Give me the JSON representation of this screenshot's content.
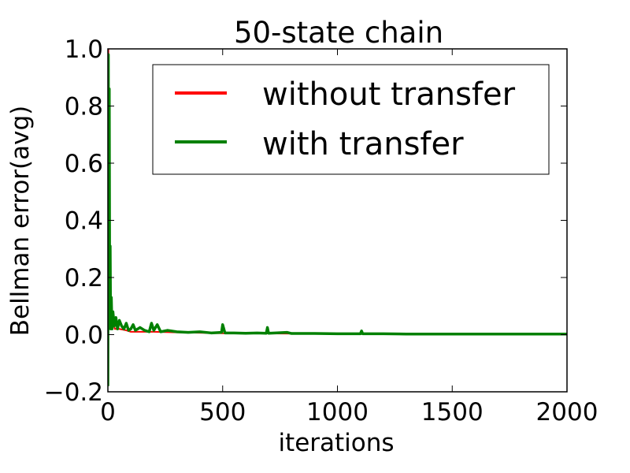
{
  "chart_data": {
    "type": "line",
    "title": "50-state chain",
    "xlabel": "iterations",
    "ylabel": "Bellman error(avg)",
    "xlim": [
      0,
      2000
    ],
    "ylim": [
      -0.2,
      1.0
    ],
    "xticks": [
      0,
      500,
      1000,
      1500,
      2000
    ],
    "xtick_labels": [
      "0",
      "500",
      "1000",
      "1500",
      "2000"
    ],
    "yticks": [
      -0.2,
      0.0,
      0.2,
      0.4,
      0.6,
      0.8,
      1.0
    ],
    "ytick_labels": [
      "−0.2",
      "0.0",
      "0.2",
      "0.4",
      "0.6",
      "0.8",
      "1.0"
    ],
    "grid": false,
    "legend_position": "top-right",
    "series": [
      {
        "name": "without transfer",
        "color": "#ff0000",
        "points": [
          [
            0,
            -0.18
          ],
          [
            2,
            1.0
          ],
          [
            4,
            0.3
          ],
          [
            6,
            0.05
          ],
          [
            10,
            0.1
          ],
          [
            15,
            0.04
          ],
          [
            20,
            0.06
          ],
          [
            30,
            0.02
          ],
          [
            50,
            0.02
          ],
          [
            80,
            0.015
          ],
          [
            100,
            0.01
          ],
          [
            200,
            0.01
          ],
          [
            300,
            0.008
          ],
          [
            500,
            0.005
          ],
          [
            700,
            0.004
          ],
          [
            1000,
            0.003
          ],
          [
            1500,
            0.002
          ],
          [
            2000,
            0.002
          ]
        ]
      },
      {
        "name": "with transfer",
        "color": "#008000",
        "points": [
          [
            0,
            -0.18
          ],
          [
            2,
            0.98
          ],
          [
            4,
            0.1
          ],
          [
            6,
            0.86
          ],
          [
            8,
            0.05
          ],
          [
            10,
            0.31
          ],
          [
            12,
            0.02
          ],
          [
            15,
            0.13
          ],
          [
            18,
            0.02
          ],
          [
            22,
            0.08
          ],
          [
            28,
            0.03
          ],
          [
            35,
            0.06
          ],
          [
            42,
            0.02
          ],
          [
            50,
            0.05
          ],
          [
            60,
            0.03
          ],
          [
            70,
            0.02
          ],
          [
            80,
            0.04
          ],
          [
            90,
            0.015
          ],
          [
            100,
            0.02
          ],
          [
            110,
            0.035
          ],
          [
            120,
            0.015
          ],
          [
            140,
            0.025
          ],
          [
            160,
            0.015
          ],
          [
            180,
            0.01
          ],
          [
            190,
            0.04
          ],
          [
            200,
            0.015
          ],
          [
            215,
            0.035
          ],
          [
            230,
            0.01
          ],
          [
            260,
            0.015
          ],
          [
            300,
            0.01
          ],
          [
            350,
            0.008
          ],
          [
            400,
            0.01
          ],
          [
            450,
            0.006
          ],
          [
            495,
            0.008
          ],
          [
            500,
            0.035
          ],
          [
            510,
            0.006
          ],
          [
            550,
            0.006
          ],
          [
            600,
            0.005
          ],
          [
            650,
            0.006
          ],
          [
            690,
            0.005
          ],
          [
            695,
            0.025
          ],
          [
            700,
            0.005
          ],
          [
            780,
            0.008
          ],
          [
            800,
            0.004
          ],
          [
            900,
            0.004
          ],
          [
            1000,
            0.003
          ],
          [
            1100,
            0.003
          ],
          [
            1105,
            0.013
          ],
          [
            1110,
            0.003
          ],
          [
            1200,
            0.003
          ],
          [
            1300,
            0.002
          ],
          [
            1400,
            0.002
          ],
          [
            1500,
            0.002
          ],
          [
            1600,
            0.002
          ],
          [
            1700,
            0.002
          ],
          [
            1800,
            0.002
          ],
          [
            1900,
            0.002
          ],
          [
            2000,
            0.002
          ]
        ]
      }
    ]
  }
}
